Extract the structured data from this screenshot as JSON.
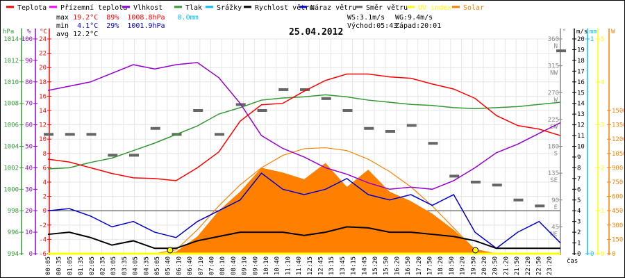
{
  "legend": [
    {
      "label": "Teplota",
      "color": "#ff0000"
    },
    {
      "label": "Přízemní teplota",
      "color": "#ff00ff"
    },
    {
      "label": "Vlhkost",
      "color": "#9400d3"
    },
    {
      "label": "Tlak",
      "color": "#339933"
    },
    {
      "label": "Srážky",
      "color": "#00bfff"
    },
    {
      "label": "Rychlost větru",
      "color": "#000000"
    },
    {
      "label": "Náraz větru",
      "color": "#0000cc"
    },
    {
      "label": "Směr větru",
      "color": "#666666"
    },
    {
      "label": "UV index",
      "color": "#ffff00"
    },
    {
      "label": "Solar",
      "color": "#ff8000"
    }
  ],
  "stats": {
    "max_label": "max",
    "max_temp": "19.2°C",
    "max_hum": "89%",
    "max_press": "1008.8hPa",
    "rain": "0.0mm",
    "min_label": "min",
    "min_temp": "4.1°C",
    "min_hum": "29%",
    "min_press": "1001.9hPa",
    "avg_label": "avg",
    "avg_temp": "12.2°C",
    "ws": "WS:3.1m/s",
    "wg": "WG:9.4m/s",
    "sunrise": "Východ:05:43",
    "sunset": "Západ:20:01"
  },
  "chart_data": {
    "type": "line",
    "title": "25.04.2012",
    "xlabel": "čas",
    "x_hours": [
      0,
      1,
      2,
      3,
      4,
      5,
      6,
      7,
      8,
      9,
      10,
      11,
      12,
      13,
      14,
      15,
      16,
      17,
      18,
      19,
      20,
      21,
      22,
      23,
      24
    ],
    "x_tick_labels": [
      "00:05",
      "00:35",
      "01:05",
      "01:35",
      "02:05",
      "02:35",
      "03:05",
      "03:35",
      "04:05",
      "04:35",
      "05:05",
      "05:40",
      "06:10",
      "06:40",
      "07:10",
      "07:40",
      "08:10",
      "08:40",
      "09:10",
      "09:40",
      "10:10",
      "10:40",
      "11:10",
      "11:40",
      "12:15",
      "12:45",
      "13:15",
      "13:45",
      "14:15",
      "14:45",
      "15:20",
      "15:50",
      "16:20",
      "16:50",
      "17:20",
      "17:50",
      "18:20",
      "18:50",
      "19:20",
      "19:50",
      "20:20",
      "20:50",
      "21:20",
      "21:50",
      "22:20",
      "22:50",
      "23:20"
    ],
    "axes": [
      {
        "unit": "hPa",
        "range": [
          994,
          1014
        ],
        "ticks": [
          994,
          996,
          998,
          1000,
          1002,
          1004,
          1006,
          1008,
          1010,
          1012,
          1014
        ],
        "color": "#339933"
      },
      {
        "unit": "%",
        "range": [
          0,
          100
        ],
        "ticks": [
          0,
          10,
          20,
          30,
          40,
          50,
          60,
          70,
          80,
          90,
          100
        ],
        "color": "#9400d3"
      },
      {
        "unit": "°C",
        "range": [
          -6,
          24
        ],
        "ticks": [
          -6,
          -4,
          -2,
          0,
          2,
          4,
          6,
          8,
          10,
          12,
          14,
          16,
          18,
          20,
          22,
          24
        ],
        "color": "#ff0000"
      },
      {
        "unit": "°",
        "range": [
          0,
          360
        ],
        "ticks": [
          {
            "v": 45,
            "l": "NE"
          },
          {
            "v": 90,
            "l": "E"
          },
          {
            "v": 135,
            "l": "SE"
          },
          {
            "v": 180,
            "l": "S"
          },
          {
            "v": 225,
            "l": "SW"
          },
          {
            "v": 270,
            "l": "W"
          },
          {
            "v": 315,
            "l": "NW"
          },
          {
            "v": 360,
            "l": "N"
          }
        ],
        "color": "#888888"
      },
      {
        "unit": "m/s",
        "range": [
          0,
          20
        ],
        "ticks": [
          0,
          1,
          2,
          3,
          4,
          5,
          6,
          7,
          8,
          9,
          10,
          11,
          12,
          13,
          14,
          15,
          16,
          17,
          18,
          19,
          20
        ],
        "color": "#000000"
      },
      {
        "unit": "mm",
        "range": [
          0,
          1
        ],
        "ticks": [
          0,
          1
        ],
        "color": "#00bfff"
      },
      {
        "unit": "",
        "range": [
          0,
          5
        ],
        "ticks": [
          0,
          1,
          2,
          3,
          4,
          5
        ],
        "color": "#ffff00"
      },
      {
        "unit": "W",
        "range": [
          0,
          2250
        ],
        "ticks": [
          0,
          150,
          300,
          450,
          600,
          750,
          900,
          1050,
          1200,
          1350,
          1500
        ],
        "color": "#ff8000"
      }
    ],
    "series": [
      {
        "name": "Teplota",
        "axis": 2,
        "color": "#ff0000",
        "values": [
          7.2,
          6.8,
          6.0,
          5.2,
          4.6,
          4.5,
          4.2,
          6.0,
          8.2,
          12.5,
          14.8,
          15.0,
          16.7,
          18.2,
          19.1,
          19.1,
          18.7,
          18.5,
          17.7,
          17.0,
          15.7,
          13.3,
          11.9,
          11.4,
          10.5
        ]
      },
      {
        "name": "Vlhkost",
        "axis": 1,
        "color": "#9400d3",
        "values": [
          76,
          78,
          80,
          84,
          88,
          86,
          88,
          89,
          82,
          70,
          55,
          49,
          45,
          40,
          37,
          33,
          30,
          31,
          30,
          34,
          40,
          47,
          51,
          56,
          61
        ]
      },
      {
        "name": "Tlak",
        "axis": 0,
        "color": "#339933",
        "values": [
          1001.9,
          1002.0,
          1002.5,
          1002.9,
          1003.6,
          1004.3,
          1005.1,
          1005.9,
          1007.0,
          1007.6,
          1008.3,
          1008.5,
          1008.6,
          1008.8,
          1008.6,
          1008.3,
          1008.1,
          1007.9,
          1007.8,
          1007.6,
          1007.5,
          1007.6,
          1007.7,
          1007.9,
          1008.1
        ]
      },
      {
        "name": "Rychlost větru",
        "axis": 4,
        "color": "#000000",
        "values": [
          1.8,
          2.0,
          1.5,
          0.8,
          1.2,
          0.5,
          0.5,
          1.2,
          1.6,
          2.0,
          2.0,
          2.0,
          1.7,
          2.0,
          2.5,
          2.4,
          2.0,
          2.0,
          1.8,
          1.6,
          1.2,
          0.5,
          0.5,
          0.5,
          0.5
        ]
      },
      {
        "name": "Náraz větru",
        "axis": 4,
        "color": "#0000cc",
        "values": [
          4.0,
          4.2,
          3.5,
          2.5,
          3.0,
          2.0,
          1.5,
          3.0,
          4.0,
          5.0,
          7.5,
          6.0,
          5.5,
          6.0,
          7.0,
          5.5,
          5.0,
          5.5,
          4.5,
          5.5,
          2.0,
          0.5,
          2.0,
          3.0,
          1.0
        ]
      },
      {
        "name": "Solar",
        "axis": 7,
        "color": "#ff8000",
        "values": [
          0,
          0,
          0,
          0,
          0,
          0,
          20,
          180,
          450,
          650,
          900,
          850,
          780,
          950,
          700,
          880,
          650,
          550,
          420,
          250,
          50,
          0,
          0,
          0,
          0
        ]
      },
      {
        "name": "Solar max",
        "axis": 7,
        "color": "#ff8000",
        "values": [
          0,
          0,
          0,
          0,
          0,
          0,
          40,
          250,
          500,
          720,
          900,
          1030,
          1100,
          1110,
          1080,
          990,
          860,
          700,
          500,
          270,
          40,
          0,
          0,
          0,
          0
        ]
      },
      {
        "name": "Směr větru",
        "axis": 3,
        "color": "#666666",
        "values": [
          200,
          200,
          200,
          165,
          165,
          210,
          200,
          240,
          200,
          250,
          240,
          275,
          275,
          260,
          240,
          210,
          205,
          215,
          185,
          130,
          120,
          115,
          90,
          80,
          340
        ]
      },
      {
        "name": "UV index",
        "axis": 6,
        "color": "#ffff00",
        "values": [
          0,
          0,
          0,
          0,
          0,
          0,
          0,
          0,
          0,
          0,
          0,
          0,
          0,
          0,
          0,
          0,
          0,
          0,
          0,
          0,
          0,
          0,
          0,
          0,
          0
        ]
      }
    ],
    "markers": [
      {
        "name": "sunrise",
        "hour": 5.72
      },
      {
        "name": "sunset",
        "hour": 20.02
      }
    ],
    "grid": true
  }
}
